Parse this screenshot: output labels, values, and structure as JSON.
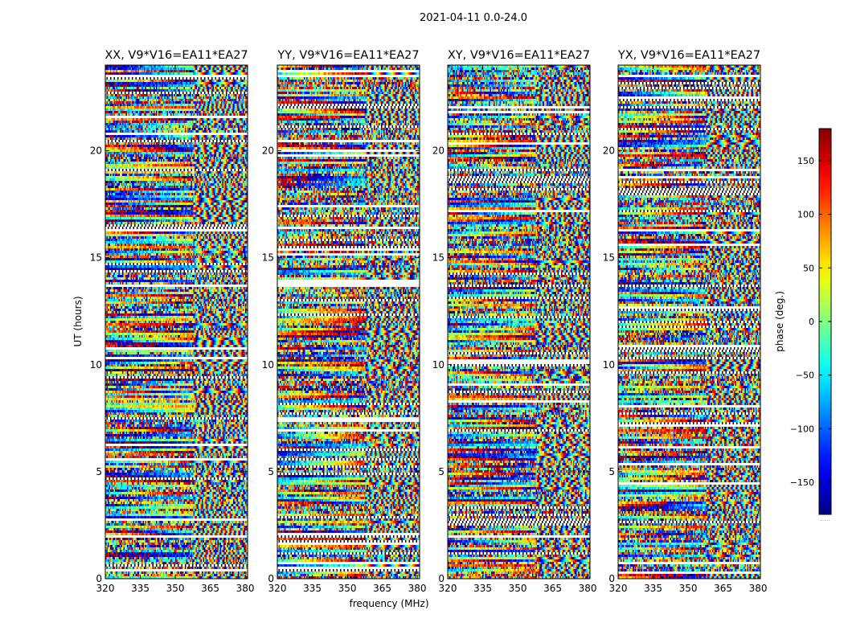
{
  "figure": {
    "title": "2021-04-11 0.0-24.0",
    "xlabel": "frequency (MHz)",
    "ylabel": "UT (hours)"
  },
  "colorbar": {
    "label": "phase (deg.)",
    "range": [
      -180,
      180
    ],
    "ticks": [
      150,
      100,
      50,
      0,
      -50,
      -100,
      -150
    ],
    "tick_labels": [
      "150",
      "100",
      "50",
      "0",
      "−50",
      "−100",
      "−150"
    ],
    "colormap": "jet",
    "footer": "....."
  },
  "chart_data": [
    {
      "type": "heatmap",
      "title": "XX, V9*V16=EA11*EA27",
      "x_range": [
        320,
        381
      ],
      "y_range": [
        0,
        24
      ],
      "xticks": [
        320,
        335,
        350,
        365,
        380
      ],
      "yticks": [
        0,
        5,
        10,
        15,
        20
      ],
      "z_range": [
        -180,
        180
      ],
      "seed": 11
    },
    {
      "type": "heatmap",
      "title": "YY, V9*V16=EA11*EA27",
      "x_range": [
        320,
        381
      ],
      "y_range": [
        0,
        24
      ],
      "xticks": [
        320,
        335,
        350,
        365,
        380
      ],
      "yticks": [
        0,
        5,
        10,
        15,
        20
      ],
      "z_range": [
        -180,
        180
      ],
      "seed": 27
    },
    {
      "type": "heatmap",
      "title": "XY, V9*V16=EA11*EA27",
      "x_range": [
        320,
        381
      ],
      "y_range": [
        0,
        24
      ],
      "xticks": [
        320,
        335,
        350,
        365,
        380
      ],
      "yticks": [
        0,
        5,
        10,
        15,
        20
      ],
      "z_range": [
        -180,
        180
      ],
      "seed": 43
    },
    {
      "type": "heatmap",
      "title": "YX, V9*V16=EA11*EA27",
      "x_range": [
        320,
        381
      ],
      "y_range": [
        0,
        24
      ],
      "xticks": [
        320,
        335,
        350,
        365,
        380
      ],
      "yticks": [
        0,
        5,
        10,
        15,
        20
      ],
      "z_range": [
        -180,
        180
      ],
      "seed": 59
    }
  ]
}
